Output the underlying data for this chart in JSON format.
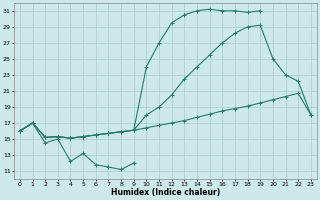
{
  "xlabel": "Humidex (Indice chaleur)",
  "bg_color": "#cce8e8",
  "grid_color": "#aacccc",
  "line_color": "#2a7a6a",
  "xlim": [
    -0.5,
    23.5
  ],
  "ylim": [
    10.0,
    32.0
  ],
  "xticks": [
    0,
    1,
    2,
    3,
    4,
    5,
    6,
    7,
    8,
    9,
    10,
    11,
    12,
    13,
    14,
    15,
    16,
    17,
    18,
    19,
    20,
    21,
    22,
    23
  ],
  "yticks": [
    11,
    13,
    15,
    17,
    19,
    21,
    23,
    25,
    27,
    29,
    31
  ],
  "line1_x": [
    0,
    1,
    2,
    3,
    4,
    5,
    6,
    7,
    8,
    9
  ],
  "line1_y": [
    16.0,
    17.0,
    14.5,
    15.0,
    12.2,
    13.2,
    11.8,
    11.5,
    11.2,
    12.0
  ],
  "line2_x": [
    0,
    1,
    2,
    3,
    4,
    5,
    6,
    7,
    8,
    9,
    10,
    11,
    12,
    13,
    14,
    15,
    16,
    17,
    18,
    19,
    20,
    21,
    22,
    23
  ],
  "line2_y": [
    16.0,
    17.0,
    15.2,
    15.3,
    15.1,
    15.3,
    15.5,
    15.7,
    15.9,
    16.1,
    16.4,
    16.7,
    17.0,
    17.3,
    17.7,
    18.1,
    18.5,
    18.8,
    19.1,
    19.5,
    19.9,
    20.3,
    20.7,
    18.0
  ],
  "line3_x": [
    0,
    1,
    2,
    3,
    4,
    5,
    6,
    7,
    8,
    9,
    10,
    11,
    12,
    13,
    14,
    15,
    16,
    17,
    18,
    19,
    20,
    21,
    22,
    23
  ],
  "line3_y": [
    16.0,
    17.0,
    15.2,
    15.3,
    15.1,
    15.3,
    15.5,
    15.7,
    15.9,
    16.1,
    18.0,
    19.0,
    20.5,
    22.5,
    24.0,
    25.5,
    27.0,
    28.2,
    29.0,
    29.2,
    25.0,
    23.0,
    22.2,
    18.0
  ],
  "line4_x": [
    0,
    1,
    2,
    3,
    4,
    5,
    6,
    7,
    8,
    9,
    10,
    11,
    12,
    13,
    14,
    15,
    16,
    17,
    18,
    19
  ],
  "line4_y": [
    16.0,
    17.0,
    15.2,
    15.3,
    15.1,
    15.3,
    15.5,
    15.7,
    15.9,
    16.1,
    24.0,
    27.0,
    29.5,
    30.5,
    31.0,
    31.2,
    31.0,
    31.0,
    30.8,
    31.0
  ]
}
